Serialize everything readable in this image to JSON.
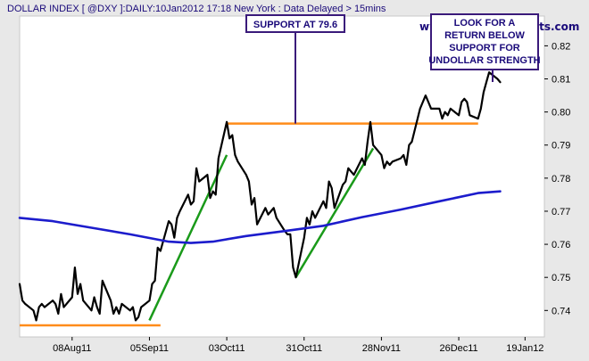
{
  "chart_data": {
    "type": "line",
    "title": "DOLLAR INDEX [ @DXY ]:DAILY:10Jan2012 17:18 New York  : Data Delayed > 15mins",
    "watermark": "www.incrediblecharts.com",
    "xlabel": "",
    "ylabel": "",
    "x_ticks": [
      "08Aug11",
      "05Sep11",
      "03Oct11",
      "31Oct11",
      "28Nov11",
      "26Dec11",
      "19Jan12"
    ],
    "y_ticks": [
      0.74,
      0.75,
      0.76,
      0.77,
      0.78,
      0.79,
      0.8,
      0.81,
      0.82
    ],
    "xlim": [
      "2011-07-20",
      "2012-01-26"
    ],
    "ylim": [
      0.732,
      0.829
    ],
    "grid": false,
    "series": [
      {
        "role": "price",
        "color": "#000000",
        "points": [
          [
            "2011-07-20",
            0.748
          ],
          [
            "2011-07-21",
            0.743
          ],
          [
            "2011-07-22",
            0.742
          ],
          [
            "2011-07-25",
            0.74
          ],
          [
            "2011-07-26",
            0.737
          ],
          [
            "2011-07-27",
            0.741
          ],
          [
            "2011-07-28",
            0.742
          ],
          [
            "2011-07-29",
            0.741
          ],
          [
            "2011-08-01",
            0.743
          ],
          [
            "2011-08-02",
            0.742
          ],
          [
            "2011-08-03",
            0.739
          ],
          [
            "2011-08-04",
            0.745
          ],
          [
            "2011-08-05",
            0.741
          ],
          [
            "2011-08-08",
            0.744
          ],
          [
            "2011-08-09",
            0.753
          ],
          [
            "2011-08-10",
            0.745
          ],
          [
            "2011-08-11",
            0.748
          ],
          [
            "2011-08-12",
            0.743
          ],
          [
            "2011-08-15",
            0.74
          ],
          [
            "2011-08-16",
            0.744
          ],
          [
            "2011-08-17",
            0.741
          ],
          [
            "2011-08-18",
            0.739
          ],
          [
            "2011-08-19",
            0.749
          ],
          [
            "2011-08-22",
            0.743
          ],
          [
            "2011-08-23",
            0.739
          ],
          [
            "2011-08-24",
            0.741
          ],
          [
            "2011-08-25",
            0.739
          ],
          [
            "2011-08-26",
            0.742
          ],
          [
            "2011-08-29",
            0.74
          ],
          [
            "2011-08-30",
            0.741
          ],
          [
            "2011-08-31",
            0.737
          ],
          [
            "2011-09-01",
            0.738
          ],
          [
            "2011-09-02",
            0.741
          ],
          [
            "2011-09-05",
            0.743
          ],
          [
            "2011-09-06",
            0.748
          ],
          [
            "2011-09-07",
            0.749
          ],
          [
            "2011-09-08",
            0.759
          ],
          [
            "2011-09-09",
            0.758
          ],
          [
            "2011-09-12",
            0.767
          ],
          [
            "2011-09-13",
            0.766
          ],
          [
            "2011-09-14",
            0.762
          ],
          [
            "2011-09-15",
            0.768
          ],
          [
            "2011-09-16",
            0.77
          ],
          [
            "2011-09-19",
            0.775
          ],
          [
            "2011-09-20",
            0.772
          ],
          [
            "2011-09-21",
            0.773
          ],
          [
            "2011-09-22",
            0.783
          ],
          [
            "2011-09-23",
            0.779
          ],
          [
            "2011-09-26",
            0.781
          ],
          [
            "2011-09-27",
            0.774
          ],
          [
            "2011-09-28",
            0.776
          ],
          [
            "2011-09-29",
            0.775
          ],
          [
            "2011-09-30",
            0.786
          ],
          [
            "2011-10-03",
            0.797
          ],
          [
            "2011-10-04",
            0.792
          ],
          [
            "2011-10-05",
            0.793
          ],
          [
            "2011-10-06",
            0.787
          ],
          [
            "2011-10-07",
            0.785
          ],
          [
            "2011-10-10",
            0.781
          ],
          [
            "2011-10-11",
            0.779
          ],
          [
            "2011-10-12",
            0.772
          ],
          [
            "2011-10-13",
            0.774
          ],
          [
            "2011-10-14",
            0.766
          ],
          [
            "2011-10-17",
            0.771
          ],
          [
            "2011-10-18",
            0.769
          ],
          [
            "2011-10-19",
            0.77
          ],
          [
            "2011-10-20",
            0.771
          ],
          [
            "2011-10-21",
            0.768
          ],
          [
            "2011-10-24",
            0.764
          ],
          [
            "2011-10-25",
            0.763
          ],
          [
            "2011-10-26",
            0.763
          ],
          [
            "2011-10-27",
            0.753
          ],
          [
            "2011-10-28",
            0.75
          ],
          [
            "2011-10-31",
            0.762
          ],
          [
            "2011-11-01",
            0.768
          ],
          [
            "2011-11-02",
            0.766
          ],
          [
            "2011-11-03",
            0.77
          ],
          [
            "2011-11-04",
            0.768
          ],
          [
            "2011-11-07",
            0.773
          ],
          [
            "2011-11-08",
            0.771
          ],
          [
            "2011-11-09",
            0.779
          ],
          [
            "2011-11-10",
            0.777
          ],
          [
            "2011-11-11",
            0.771
          ],
          [
            "2011-11-14",
            0.778
          ],
          [
            "2011-11-15",
            0.779
          ],
          [
            "2011-11-16",
            0.783
          ],
          [
            "2011-11-17",
            0.782
          ],
          [
            "2011-11-18",
            0.781
          ],
          [
            "2011-11-21",
            0.786
          ],
          [
            "2011-11-22",
            0.784
          ],
          [
            "2011-11-23",
            0.791
          ],
          [
            "2011-11-24",
            0.797
          ],
          [
            "2011-11-25",
            0.79
          ],
          [
            "2011-11-28",
            0.787
          ],
          [
            "2011-11-29",
            0.783
          ],
          [
            "2011-11-30",
            0.785
          ],
          [
            "2011-12-01",
            0.784
          ],
          [
            "2011-12-02",
            0.785
          ],
          [
            "2011-12-05",
            0.786
          ],
          [
            "2011-12-06",
            0.787
          ],
          [
            "2011-12-07",
            0.784
          ],
          [
            "2011-12-08",
            0.79
          ],
          [
            "2011-12-09",
            0.791
          ],
          [
            "2011-12-12",
            0.801
          ],
          [
            "2011-12-13",
            0.803
          ],
          [
            "2011-12-14",
            0.805
          ],
          [
            "2011-12-15",
            0.803
          ],
          [
            "2011-12-16",
            0.801
          ],
          [
            "2011-12-19",
            0.801
          ],
          [
            "2011-12-20",
            0.798
          ],
          [
            "2011-12-21",
            0.8
          ],
          [
            "2011-12-22",
            0.799
          ],
          [
            "2011-12-23",
            0.801
          ],
          [
            "2011-12-26",
            0.799
          ],
          [
            "2011-12-27",
            0.803
          ],
          [
            "2011-12-28",
            0.804
          ],
          [
            "2011-12-29",
            0.803
          ],
          [
            "2011-12-30",
            0.799
          ],
          [
            "2012-01-02",
            0.798
          ],
          [
            "2012-01-03",
            0.801
          ],
          [
            "2012-01-04",
            0.806
          ],
          [
            "2012-01-05",
            0.809
          ],
          [
            "2012-01-06",
            0.812
          ],
          [
            "2012-01-09",
            0.81
          ],
          [
            "2012-01-10",
            0.809
          ]
        ]
      },
      {
        "role": "moving-average",
        "color": "#1c1ccc",
        "points": [
          [
            "2011-07-20",
            0.768
          ],
          [
            "2011-08-01",
            0.767
          ],
          [
            "2011-08-15",
            0.765
          ],
          [
            "2011-08-29",
            0.763
          ],
          [
            "2011-09-12",
            0.7608
          ],
          [
            "2011-09-20",
            0.7604
          ],
          [
            "2011-09-28",
            0.7608
          ],
          [
            "2011-10-10",
            0.7625
          ],
          [
            "2011-10-24",
            0.764
          ],
          [
            "2011-11-07",
            0.7656
          ],
          [
            "2011-11-21",
            0.7682
          ],
          [
            "2011-12-05",
            0.7705
          ],
          [
            "2011-12-19",
            0.773
          ],
          [
            "2012-01-02",
            0.7755
          ],
          [
            "2012-01-10",
            0.776
          ]
        ]
      }
    ],
    "overlays": [
      {
        "role": "support-line",
        "color": "#ff8c1a",
        "from": [
          "2011-07-20",
          0.7355
        ],
        "to": [
          "2011-09-09",
          0.7355
        ]
      },
      {
        "role": "support-line",
        "color": "#ff8c1a",
        "from": [
          "2011-10-03",
          0.7965
        ],
        "to": [
          "2012-01-02",
          0.7965
        ]
      },
      {
        "role": "trend-line",
        "color": "#1a9a1a",
        "from": [
          "2011-09-05",
          0.737
        ],
        "to": [
          "2011-10-03",
          0.787
        ]
      },
      {
        "role": "trend-line",
        "color": "#1a9a1a",
        "from": [
          "2011-10-28",
          0.75
        ],
        "to": [
          "2011-11-25",
          0.789
        ]
      }
    ],
    "annotations": [
      {
        "id": "support",
        "lines": [
          "SUPPORT AT 79.6"
        ]
      },
      {
        "id": "look",
        "lines": [
          "LOOK FOR A",
          "RETURN BELOW",
          "SUPPORT FOR",
          "UNDOLLAR STRENGTH"
        ]
      }
    ],
    "colors": {
      "background": "#e8e8e8",
      "plot_background": "#ffffff",
      "price": "#000000",
      "moving_average": "#1c1ccc",
      "support": "#ff8c1a",
      "trend": "#1a9a1a",
      "annotation_border": "#3a1a7a",
      "text": "#1a0a7a"
    }
  }
}
